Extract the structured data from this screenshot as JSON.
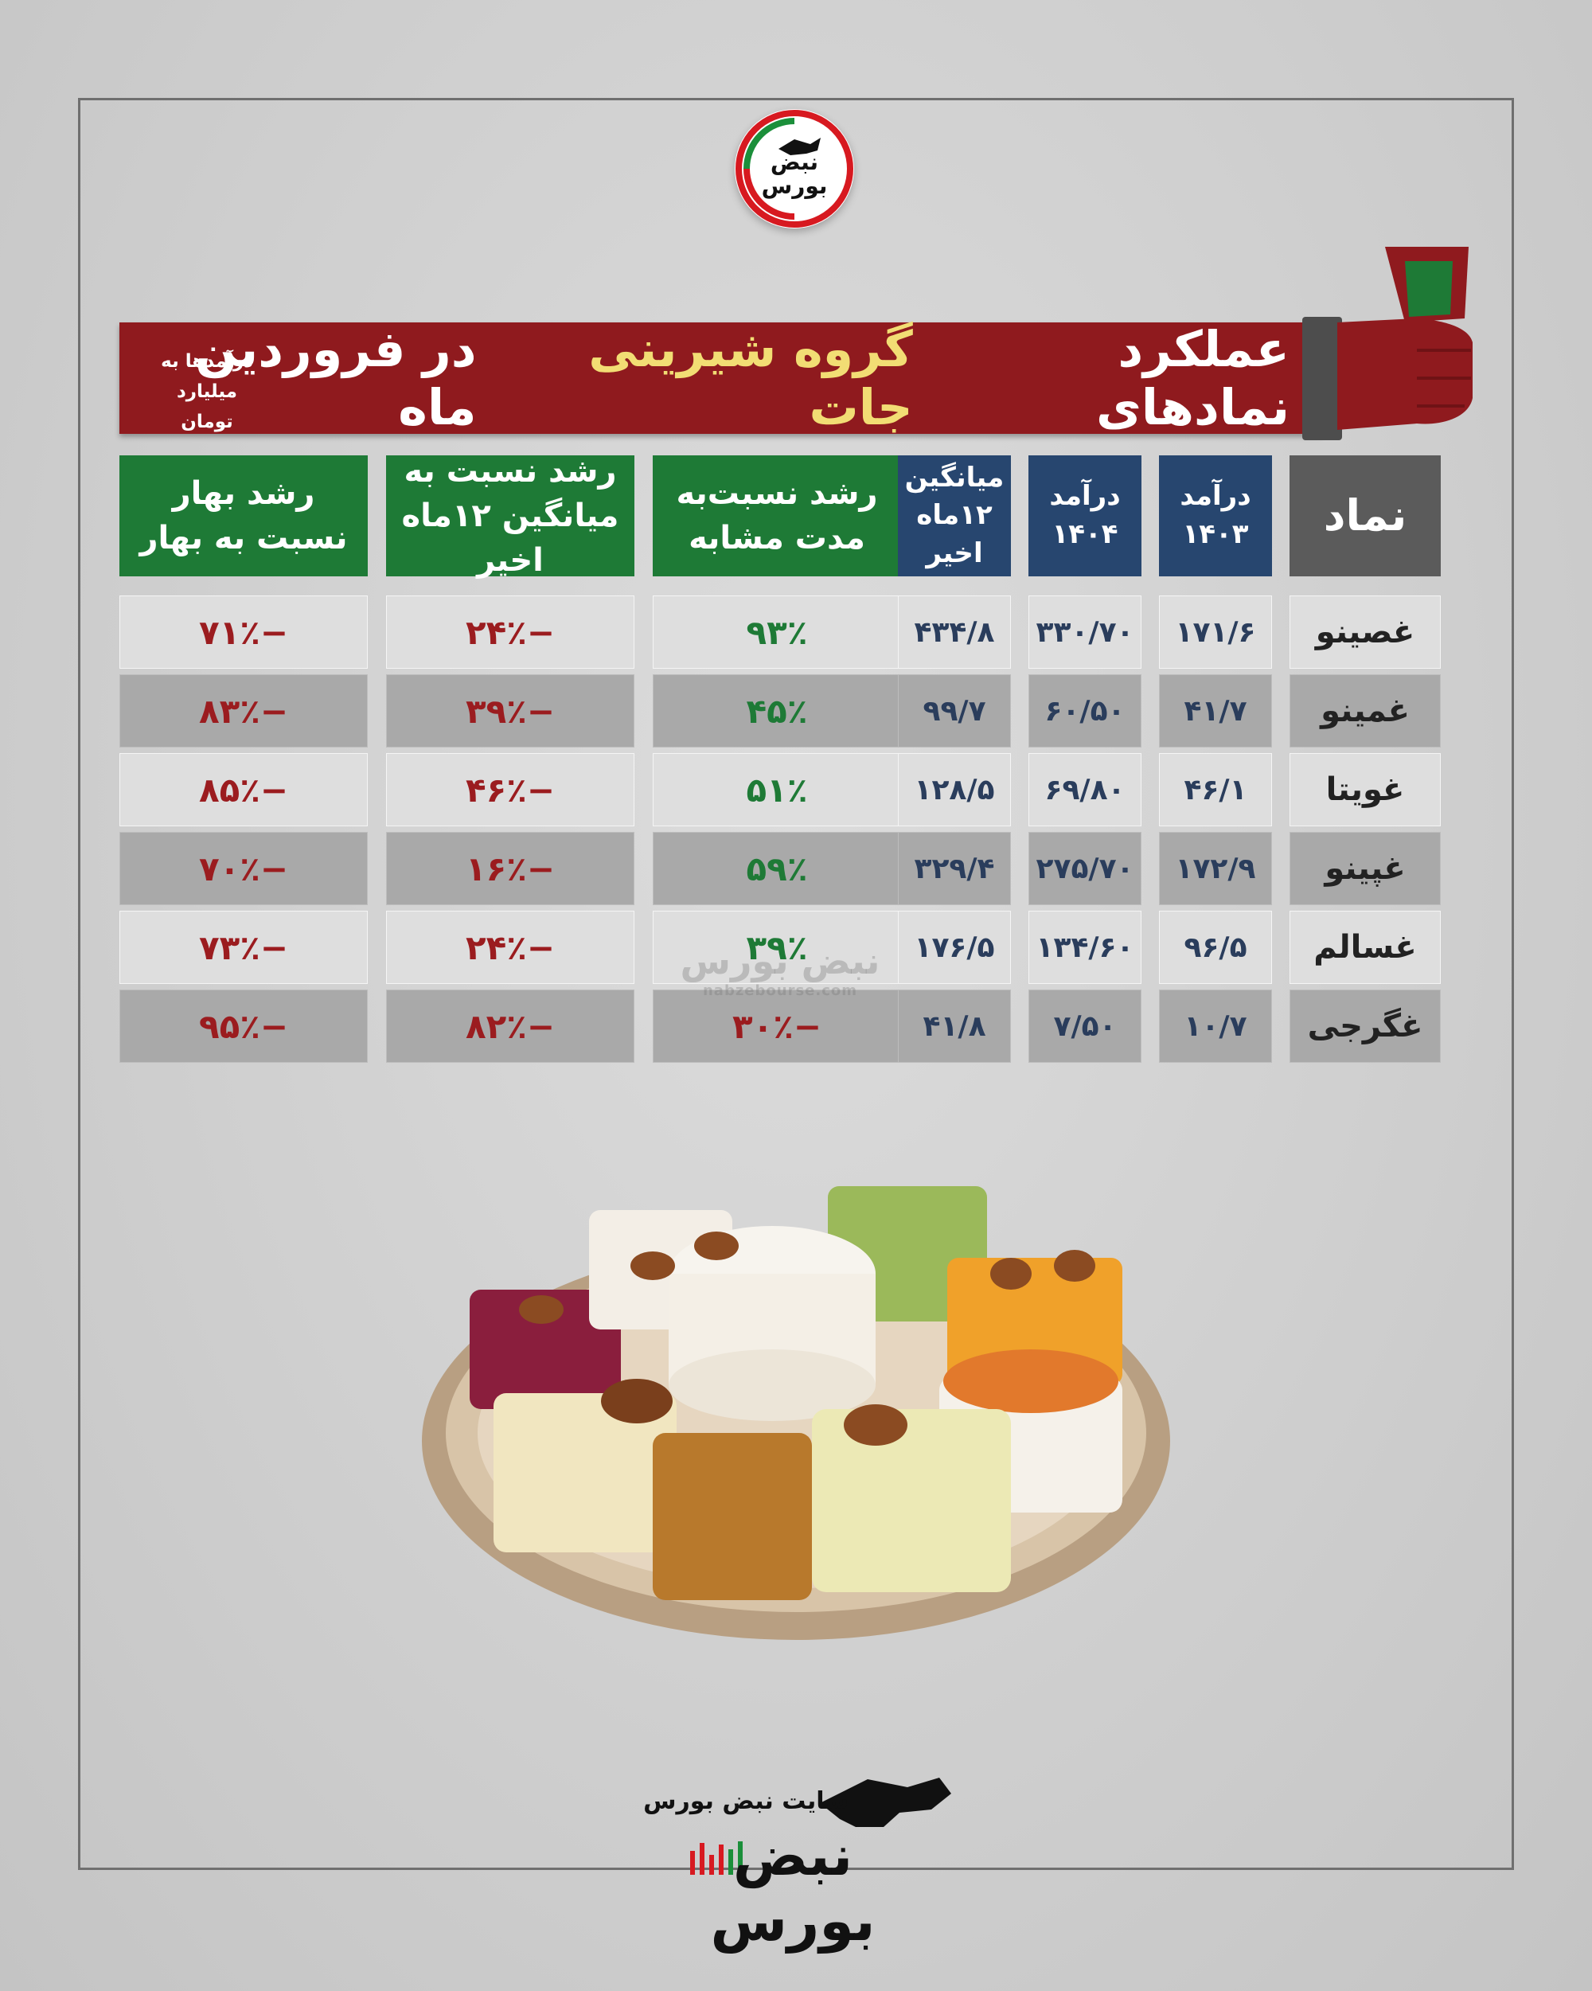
{
  "logo": {
    "brand": "نبض بورس"
  },
  "banner": {
    "title_pre": "عملکرد نمادهای",
    "title_highlight": "گروه شیرینی جات",
    "title_post": "در فروردین ماه",
    "note": "درآمدها به میلیارد تومان"
  },
  "columns": [
    {
      "key": "spring_growth",
      "label": "رشد بهار نسبت به بهار",
      "color": "#1e7a36"
    },
    {
      "key": "vs_avg_growth",
      "label": "رشد نسبت به میانگین ۱۲ماه اخیر",
      "color": "#1e7a36"
    },
    {
      "key": "yoy_growth",
      "label": "رشد نسبت‌به مدت مشابه",
      "color": "#1e7a36"
    },
    {
      "key": "avg12",
      "label": "میانگین ۱۲ماه اخیر",
      "color": "#27466f"
    },
    {
      "key": "rev1404",
      "label": "درآمد ۱۴۰۴",
      "color": "#27466f"
    },
    {
      "key": "rev1403",
      "label": "درآمد ۱۴۰۳",
      "color": "#27466f"
    },
    {
      "key": "symbol",
      "label": "نماد",
      "color": "#5b5b5b"
    }
  ],
  "rows": [
    {
      "symbol": "غصینو",
      "rev1403": "۱۷۱/۶",
      "rev1404": "۳۳۰/۷۰",
      "avg12": "۴۳۴/۸",
      "yoy_growth": "۹۳٪",
      "vs_avg_growth": "−۲۴٪",
      "spring_growth": "−۷۱٪"
    },
    {
      "symbol": "غمینو",
      "rev1403": "۴۱/۷",
      "rev1404": "۶۰/۵۰",
      "avg12": "۹۹/۷",
      "yoy_growth": "۴۵٪",
      "vs_avg_growth": "−۳۹٪",
      "spring_growth": "−۸۳٪"
    },
    {
      "symbol": "غویتا",
      "rev1403": "۴۶/۱",
      "rev1404": "۶۹/۸۰",
      "avg12": "۱۲۸/۵",
      "yoy_growth": "۵۱٪",
      "vs_avg_growth": "−۴۶٪",
      "spring_growth": "−۸۵٪"
    },
    {
      "symbol": "غپینو",
      "rev1403": "۱۷۲/۹",
      "rev1404": "۲۷۵/۷۰",
      "avg12": "۳۲۹/۴",
      "yoy_growth": "۵۹٪",
      "vs_avg_growth": "−۱۶٪",
      "spring_growth": "−۷۰٪"
    },
    {
      "symbol": "غسالم",
      "rev1403": "۹۶/۵",
      "rev1404": "۱۳۴/۶۰",
      "avg12": "۱۷۶/۵",
      "yoy_growth": "۳۹٪",
      "vs_avg_growth": "−۲۴٪",
      "spring_growth": "−۷۳٪"
    },
    {
      "symbol": "غگرجی",
      "rev1403": "۱۰/۷",
      "rev1404": "۷/۵۰",
      "avg12": "۴۱/۸",
      "yoy_growth": "−۳۰٪",
      "vs_avg_growth": "−۸۲٪",
      "spring_growth": "−۹۵٪"
    }
  ],
  "colors": {
    "positive": "#1e7a36",
    "negative": "#9b1c1f",
    "banner": "#8f1a1e"
  },
  "watermark": {
    "brand": "نبض بورس",
    "url": "nabzebourse.com"
  },
  "footer": {
    "site_label": "سایت نبض بورس",
    "brand": "نبض بورس"
  },
  "illustration": {
    "name": "sweets-plate-image"
  }
}
